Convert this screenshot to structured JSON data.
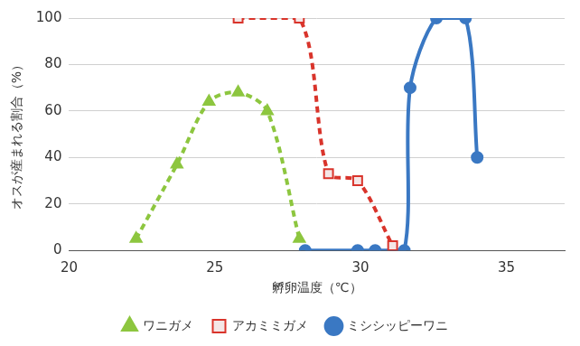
{
  "chart_data": {
    "type": "line",
    "x_label": "孵卵温度（℃）",
    "y_label": "オスが産まれる割合（%）",
    "xlim": [
      20,
      37
    ],
    "xticks": [
      20,
      25,
      30,
      35
    ],
    "ylim": [
      0,
      100
    ],
    "yticks": [
      0,
      20,
      40,
      60,
      80,
      100
    ],
    "grid": true,
    "legend": "bottom",
    "series": [
      {
        "name": "ワニガメ",
        "color": "#8dc63f",
        "marker": "triangle",
        "line_style": "dashed",
        "x": [
          22.3,
          23.7,
          24.8,
          25.8,
          26.8,
          27.9
        ],
        "values": [
          5,
          37,
          64,
          68,
          60,
          5
        ]
      },
      {
        "name": "アカミミガメ",
        "color": "#d9342b",
        "marker": "square",
        "line_style": "dashed",
        "x": [
          25.8,
          27.9,
          28.9,
          29.9,
          31.1
        ],
        "values": [
          100,
          100,
          33,
          30,
          2
        ]
      },
      {
        "name": "ミシシッピーワニ",
        "color": "#3a78c3",
        "marker": "circle",
        "line_style": "solid",
        "x": [
          28.1,
          29.9,
          30.5,
          31.5,
          31.7,
          32.6,
          33.6,
          34
        ],
        "values": [
          0,
          0,
          0,
          0,
          70,
          100,
          100,
          40
        ]
      }
    ]
  }
}
